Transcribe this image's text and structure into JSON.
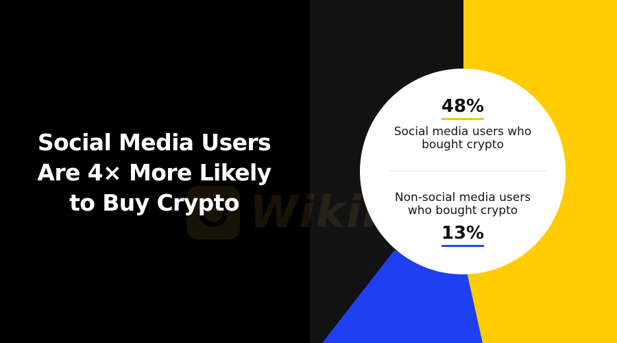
{
  "headline": {
    "line1": "Social Media Users",
    "line2": "Are 4× More Likely",
    "line3": "to Buy Crypto"
  },
  "watermark": {
    "text": "WikiFX",
    "icon": "wikifx-logo-icon"
  },
  "stats": {
    "social": {
      "value": "48%",
      "label_line1": "Social media users who",
      "label_line2": "bought crypto",
      "underline_color": "#f7c500"
    },
    "non_social": {
      "value": "13%",
      "label_line1": "Non-social media users",
      "label_line2": "who bought crypto",
      "underline_color": "#2346f5"
    }
  },
  "colors": {
    "background": "#000000",
    "panel_dark": "#121212",
    "accent_yellow": "#ffcc00",
    "accent_blue": "#1f3ff2",
    "circle": "#ffffff"
  }
}
